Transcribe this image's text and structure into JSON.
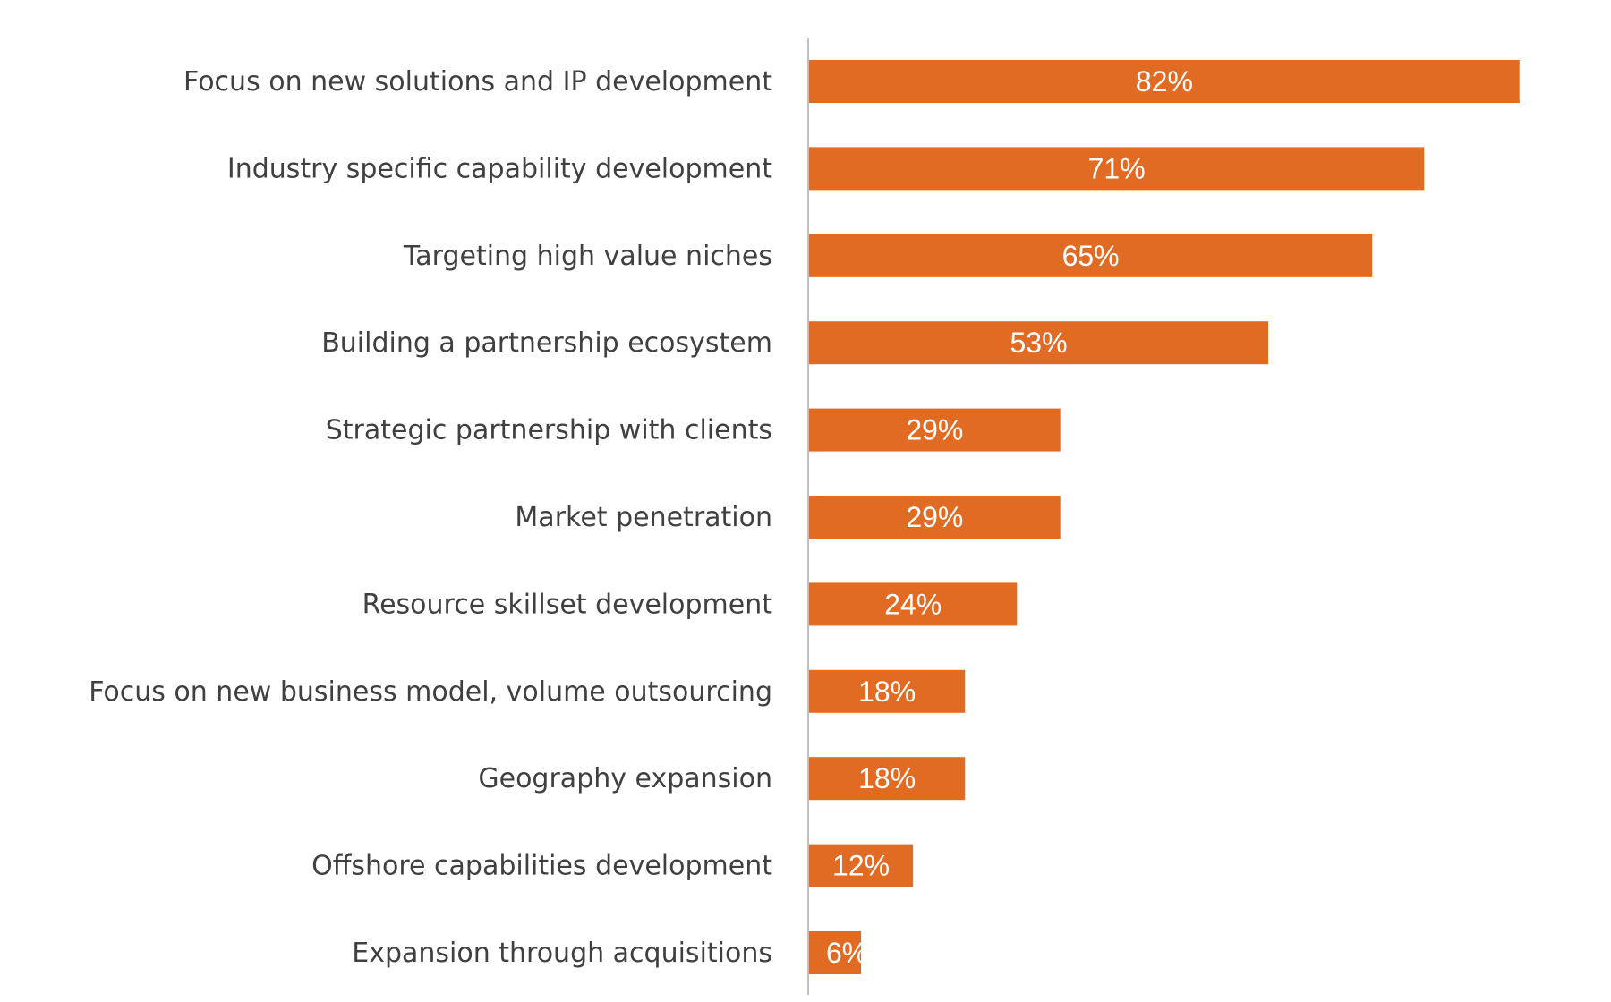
{
  "chart_data": {
    "type": "bar",
    "orientation": "horizontal",
    "categories": [
      "Focus on new solutions and IP development",
      "Industry specific capability development",
      "Targeting high value niches",
      "Building a partnership ecosystem",
      "Strategic partnership with clients",
      "Market penetration",
      "Resource skillset development",
      "Focus on new business model, volume outsourcing",
      "Geography expansion",
      "Offshore capabilities development",
      "Expansion through acquisitions"
    ],
    "values": [
      82,
      71,
      65,
      53,
      29,
      29,
      24,
      18,
      18,
      12,
      6
    ],
    "data_labels": [
      "82%",
      "71%",
      "65%",
      "53%",
      "29%",
      "29%",
      "24%",
      "18%",
      "18%",
      "12%",
      "6%"
    ],
    "unit": "%",
    "xlim": [
      0,
      100
    ],
    "bar_color": "#E26B24",
    "axis_color": "#BFBFBF",
    "label_color": "#404040",
    "grid": false,
    "legend": "none"
  }
}
